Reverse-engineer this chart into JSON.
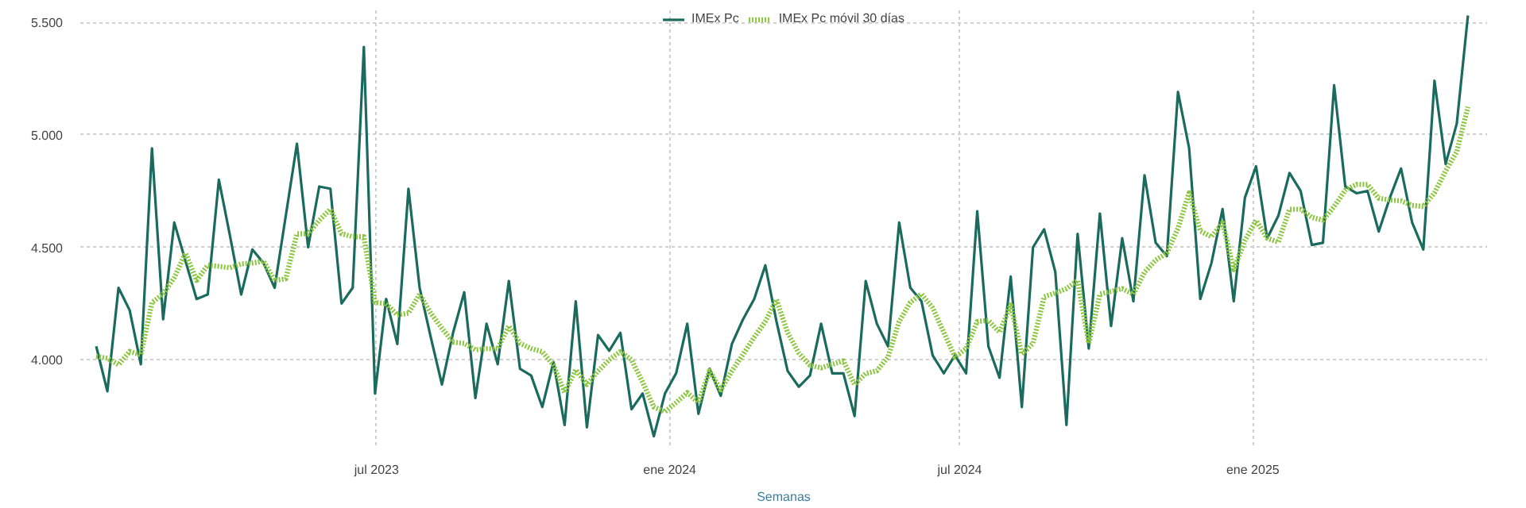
{
  "chart_data": {
    "type": "line",
    "xlabel": "Semanas",
    "x": [
      "2023-01-06",
      "2023-01-13",
      "2023-01-20",
      "2023-01-27",
      "2023-02-03",
      "2023-02-10",
      "2023-02-17",
      "2023-02-24",
      "2023-03-03",
      "2023-03-10",
      "2023-03-17",
      "2023-03-24",
      "2023-03-31",
      "2023-04-07",
      "2023-04-14",
      "2023-04-21",
      "2023-04-28",
      "2023-05-05",
      "2023-05-12",
      "2023-05-19",
      "2023-05-26",
      "2023-06-02",
      "2023-06-09",
      "2023-06-16",
      "2023-06-23",
      "2023-06-30",
      "2023-07-07",
      "2023-07-14",
      "2023-07-21",
      "2023-07-28",
      "2023-08-04",
      "2023-08-11",
      "2023-08-18",
      "2023-08-25",
      "2023-09-01",
      "2023-09-08",
      "2023-09-15",
      "2023-09-22",
      "2023-09-29",
      "2023-10-06",
      "2023-10-13",
      "2023-10-20",
      "2023-10-27",
      "2023-11-03",
      "2023-11-10",
      "2023-11-17",
      "2023-11-24",
      "2023-12-01",
      "2023-12-08",
      "2023-12-15",
      "2023-12-22",
      "2023-12-29",
      "2024-01-05",
      "2024-01-12",
      "2024-01-19",
      "2024-01-26",
      "2024-02-02",
      "2024-02-09",
      "2024-02-16",
      "2024-02-23",
      "2024-03-01",
      "2024-03-08",
      "2024-03-15",
      "2024-03-22",
      "2024-03-29",
      "2024-04-05",
      "2024-04-12",
      "2024-04-19",
      "2024-04-26",
      "2024-05-03",
      "2024-05-10",
      "2024-05-17",
      "2024-05-24",
      "2024-05-31",
      "2024-06-07",
      "2024-06-14",
      "2024-06-21",
      "2024-06-28",
      "2024-07-05",
      "2024-07-12",
      "2024-07-19",
      "2024-07-26",
      "2024-08-02",
      "2024-08-09",
      "2024-08-16",
      "2024-08-23",
      "2024-08-30",
      "2024-09-06",
      "2024-09-13",
      "2024-09-20",
      "2024-09-27",
      "2024-10-04",
      "2024-10-11",
      "2024-10-18",
      "2024-10-25",
      "2024-11-01",
      "2024-11-08",
      "2024-11-15",
      "2024-11-22",
      "2024-11-29",
      "2024-12-06",
      "2024-12-13",
      "2024-12-20",
      "2024-12-27",
      "2025-01-03",
      "2025-01-10",
      "2025-01-17",
      "2025-01-24",
      "2025-01-31",
      "2025-02-07",
      "2025-02-14",
      "2025-02-21",
      "2025-02-28",
      "2025-03-07",
      "2025-03-14",
      "2025-03-21",
      "2025-03-28",
      "2025-04-04",
      "2025-04-11",
      "2025-04-18",
      "2025-04-25",
      "2025-05-02",
      "2025-05-09",
      "2025-05-16"
    ],
    "series": [
      {
        "name": "IMEx Pc",
        "color": "#1a6b5e",
        "line_style": "solid",
        "values": [
          4060,
          3860,
          4320,
          4220,
          3980,
          4940,
          4180,
          4610,
          4440,
          4270,
          4290,
          4800,
          4550,
          4290,
          4490,
          4430,
          4320,
          4640,
          4960,
          4500,
          4770,
          4760,
          4250,
          4320,
          5390,
          3850,
          4270,
          4070,
          4760,
          4320,
          4100,
          3890,
          4120,
          4300,
          3830,
          4160,
          3980,
          4350,
          3960,
          3930,
          3790,
          3990,
          3710,
          4260,
          3700,
          4110,
          4040,
          4120,
          3780,
          3850,
          3660,
          3850,
          3940,
          4160,
          3760,
          3960,
          3840,
          4070,
          4180,
          4270,
          4420,
          4170,
          3950,
          3880,
          3930,
          4160,
          3940,
          3940,
          3750,
          4350,
          4160,
          4060,
          4610,
          4320,
          4260,
          4020,
          3940,
          4020,
          3940,
          4660,
          4060,
          3920,
          4370,
          3790,
          4500,
          4580,
          4390,
          3710,
          4560,
          4050,
          4650,
          4150,
          4540,
          4260,
          4820,
          4520,
          4460,
          5190,
          4940,
          4270,
          4430,
          4670,
          4260,
          4720,
          4860,
          4540,
          4640,
          4830,
          4750,
          4510,
          4520,
          5220,
          4770,
          4740,
          4750,
          4570,
          4720,
          4850,
          4610,
          4490,
          5240,
          4870,
          5050,
          5530
        ]
      },
      {
        "name": "IMEx Pc móvil 30 días",
        "color": "#8cc63f",
        "line_style": "dotted",
        "values": [
          4015,
          4007,
          3978,
          4037,
          4022,
          4255,
          4292,
          4365,
          4474,
          4353,
          4420,
          4415,
          4409,
          4426,
          4430,
          4438,
          4353,
          4360,
          4560,
          4560,
          4620,
          4669,
          4560,
          4547,
          4547,
          4255,
          4250,
          4199,
          4207,
          4292,
          4207,
          4140,
          4078,
          4073,
          4044,
          4049,
          4049,
          4151,
          4073,
          4050,
          4036,
          3976,
          3854,
          3956,
          3890,
          3950,
          4000,
          4036,
          4000,
          3900,
          3790,
          3769,
          3810,
          3854,
          3810,
          3951,
          3866,
          3950,
          4024,
          4100,
          4170,
          4268,
          4120,
          4030,
          3976,
          3964,
          3980,
          3995,
          3890,
          3939,
          3951,
          4012,
          4170,
          4255,
          4292,
          4231,
          4122,
          4012,
          4049,
          4170,
          4175,
          4122,
          4243,
          4024,
          4073,
          4280,
          4297,
          4316,
          4353,
          4073,
          4292,
          4304,
          4316,
          4292,
          4389,
          4443,
          4474,
          4584,
          4742,
          4572,
          4547,
          4608,
          4401,
          4530,
          4620,
          4540,
          4523,
          4669,
          4669,
          4633,
          4620,
          4681,
          4754,
          4779,
          4779,
          4718,
          4710,
          4706,
          4686,
          4681,
          4742,
          4839,
          4925,
          5124
        ]
      }
    ],
    "xlim": [
      "2022-12-27",
      "2025-05-28"
    ],
    "xticks": [
      {
        "value": "2023-07-01",
        "label": "jul 2023"
      },
      {
        "value": "2024-01-01",
        "label": "ene 2024"
      },
      {
        "value": "2024-07-01",
        "label": "jul 2024"
      },
      {
        "value": "2025-01-01",
        "label": "ene 2025"
      }
    ],
    "ylim": [
      3620,
      5560
    ],
    "yticks": [
      {
        "value": 4000,
        "label": "4.000"
      },
      {
        "value": 4500,
        "label": "4.500"
      },
      {
        "value": 5000,
        "label": "5.000"
      },
      {
        "value": 5500,
        "label": "5.500"
      }
    ],
    "grid": true,
    "legend": "top",
    "marker": "none"
  }
}
